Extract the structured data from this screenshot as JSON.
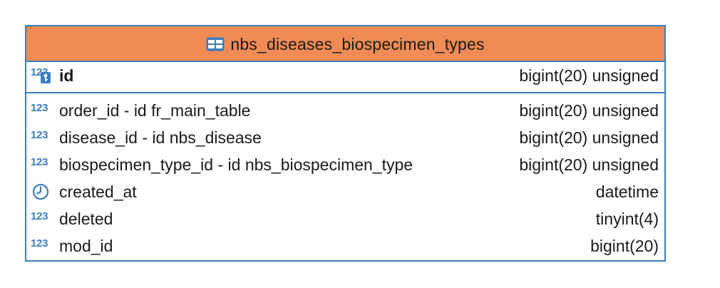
{
  "entity": {
    "title": "nbs_diseases_biospecimen_types",
    "header_color": "#f08b55",
    "border_color": "#3a7dc1",
    "primary_key": {
      "name": "id",
      "type": "bigint(20) unsigned",
      "icon": "numeric-key-icon",
      "icon_text": "123"
    },
    "columns": [
      {
        "name": "order_id - id fr_main_table",
        "type": "bigint(20) unsigned",
        "icon": "numeric-icon",
        "icon_text": "123"
      },
      {
        "name": "disease_id - id nbs_disease",
        "type": "bigint(20) unsigned",
        "icon": "numeric-icon",
        "icon_text": "123"
      },
      {
        "name": "biospecimen_type_id - id nbs_biospecimen_type",
        "type": "bigint(20) unsigned",
        "icon": "numeric-icon",
        "icon_text": "123"
      },
      {
        "name": "created_at",
        "type": "datetime",
        "icon": "clock-icon",
        "icon_text": ""
      },
      {
        "name": "deleted",
        "type": "tinyint(4)",
        "icon": "numeric-icon",
        "icon_text": "123"
      },
      {
        "name": "mod_id",
        "type": "bigint(20)",
        "icon": "numeric-icon",
        "icon_text": "123"
      }
    ]
  }
}
